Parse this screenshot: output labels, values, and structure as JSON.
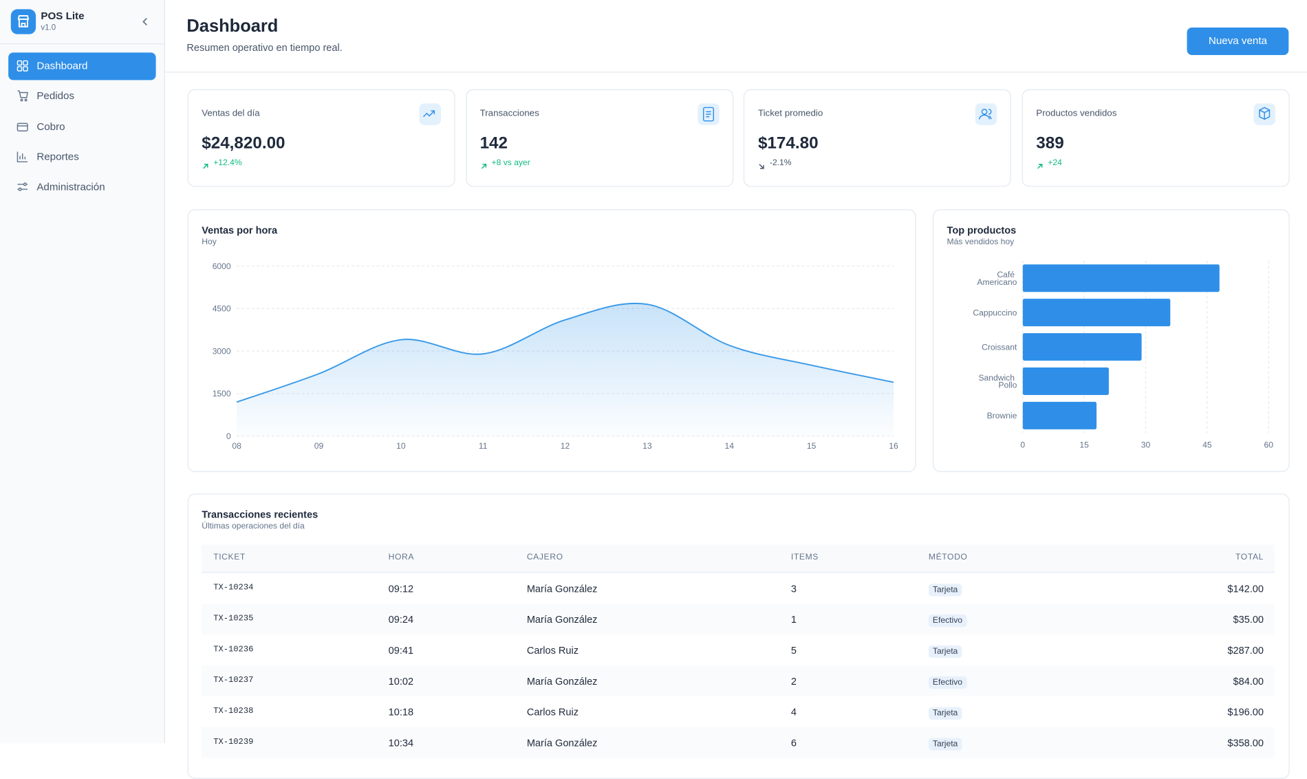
{
  "sidebar": {
    "app_name": "POS Lite",
    "version": "v1.0",
    "nav": [
      "Dashboard",
      "Pedidos",
      "Cobro",
      "Reportes",
      "Administración"
    ]
  },
  "header": {
    "title": "Dashboard",
    "subtitle": "Resumen operativo en tiempo real.",
    "button": "Nueva venta"
  },
  "kpis": [
    {
      "label": "Ventas del día",
      "value": "$24,820.00",
      "change": "+12.4%",
      "trend": "up"
    },
    {
      "label": "Transacciones",
      "value": "142",
      "change": "+8 vs ayer",
      "trend": "up"
    },
    {
      "label": "Ticket promedio",
      "value": "$174.80",
      "change": "-2.1%",
      "trend": "down"
    },
    {
      "label": "Productos vendidos",
      "value": "389",
      "change": "+24",
      "trend": "up"
    }
  ],
  "chart_data": [
    {
      "type": "area",
      "title": "Ventas por hora",
      "subtitle": "Hoy",
      "categories": [
        "08",
        "09",
        "10",
        "11",
        "12",
        "13",
        "14",
        "15",
        "16"
      ],
      "values": [
        1200,
        2200,
        3400,
        2900,
        4100,
        4650,
        3200,
        2500,
        1900
      ],
      "color": "#3b9ae8",
      "ylim": [
        0,
        6000
      ],
      "yticks": [
        0,
        1500,
        3000,
        4500,
        6000
      ],
      "grid": true
    },
    {
      "type": "bar",
      "orientation": "horizontal",
      "title": "Top productos",
      "subtitle": "Más vendidos hoy",
      "categories": [
        "Café Americano",
        "Cappuccino",
        "Croissant",
        "Sandwich Pollo",
        "Brownie"
      ],
      "values": [
        48,
        36,
        29,
        21,
        18
      ],
      "color": "#2f8fe8",
      "xlim": [
        0,
        60
      ],
      "xticks": [
        0,
        15,
        30,
        45,
        60
      ],
      "grid": true
    }
  ],
  "table": {
    "title": "Transacciones recientes",
    "subtitle": "Últimas operaciones del día",
    "columns": [
      "TICKET",
      "HORA",
      "CAJERO",
      "ITEMS",
      "MÉTODO",
      "TOTAL"
    ],
    "rows": [
      [
        "TX-10234",
        "09:12",
        "María González",
        3,
        "Tarjeta",
        "$142.00"
      ],
      [
        "TX-10235",
        "09:24",
        "María González",
        1,
        "Efectivo",
        "$35.00"
      ],
      [
        "TX-10236",
        "09:41",
        "Carlos Ruiz",
        5,
        "Tarjeta",
        "$287.00"
      ],
      [
        "TX-10237",
        "10:02",
        "María González",
        2,
        "Efectivo",
        "$84.00"
      ],
      [
        "TX-10238",
        "10:18",
        "Carlos Ruiz",
        4,
        "Tarjeta",
        "$196.00"
      ],
      [
        "TX-10239",
        "10:34",
        "María González",
        6,
        "Tarjeta",
        "$358.00"
      ]
    ]
  }
}
